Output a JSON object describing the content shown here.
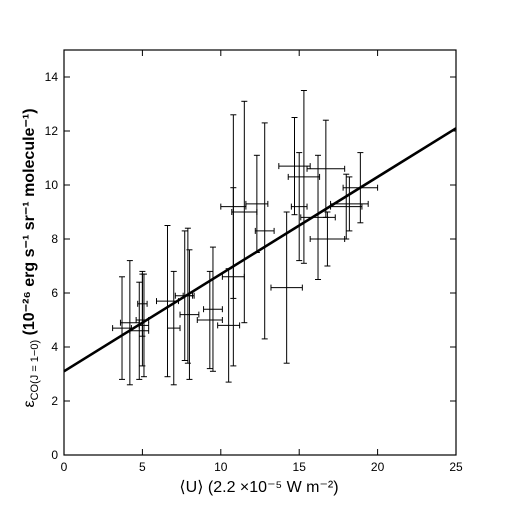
{
  "chart_data": {
    "type": "scatter",
    "xlabel": "⟨U⟩ (2.2 ×10⁻⁵ W m⁻²)",
    "ylabel_symbol": "ε",
    "ylabel_subscript": "CO(J = 1−0)",
    "ylabel_units": " (10⁻²⁶ erg s⁻¹ sr⁻¹ molecule⁻¹)",
    "xlim": [
      0,
      25
    ],
    "ylim": [
      0,
      15
    ],
    "xticks": [
      0,
      5,
      10,
      15,
      20,
      25
    ],
    "yticks": [
      0,
      2,
      4,
      6,
      8,
      10,
      12,
      14
    ],
    "grid": false,
    "fit_line": {
      "intercept": 3.1,
      "slope": 0.36
    },
    "points": [
      {
        "x": 3.7,
        "y": 4.7,
        "xerr": 0.6,
        "yerr": 1.9
      },
      {
        "x": 4.2,
        "y": 4.9,
        "xerr": 0.6,
        "yerr": 2.3
      },
      {
        "x": 4.8,
        "y": 4.6,
        "xerr": 0.6,
        "yerr": 1.8
      },
      {
        "x": 5.0,
        "y": 5.0,
        "xerr": 0.4,
        "yerr": 1.7
      },
      {
        "x": 5.0,
        "y": 5.6,
        "xerr": 0.3,
        "yerr": 1.2
      },
      {
        "x": 5.1,
        "y": 4.8,
        "xerr": 0.3,
        "yerr": 1.9
      },
      {
        "x": 6.6,
        "y": 5.7,
        "xerr": 0.7,
        "yerr": 2.8
      },
      {
        "x": 7.0,
        "y": 4.7,
        "xerr": 0.4,
        "yerr": 2.1
      },
      {
        "x": 7.7,
        "y": 5.9,
        "xerr": 0.6,
        "yerr": 2.4
      },
      {
        "x": 8.0,
        "y": 5.2,
        "xerr": 0.6,
        "yerr": 2.4
      },
      {
        "x": 7.9,
        "y": 5.9,
        "xerr": 0.3,
        "yerr": 2.5
      },
      {
        "x": 9.3,
        "y": 5.0,
        "xerr": 0.8,
        "yerr": 1.8
      },
      {
        "x": 9.5,
        "y": 5.4,
        "xerr": 0.6,
        "yerr": 2.3
      },
      {
        "x": 10.5,
        "y": 4.8,
        "xerr": 0.7,
        "yerr": 2.1
      },
      {
        "x": 10.8,
        "y": 6.6,
        "xerr": 0.7,
        "yerr": 3.3
      },
      {
        "x": 10.8,
        "y": 9.2,
        "xerr": 0.8,
        "yerr": 3.4
      },
      {
        "x": 11.5,
        "y": 9.0,
        "xerr": 0.8,
        "yerr": 4.1
      },
      {
        "x": 12.3,
        "y": 9.3,
        "xerr": 0.7,
        "yerr": 1.8
      },
      {
        "x": 12.8,
        "y": 8.3,
        "xerr": 0.6,
        "yerr": 4.0
      },
      {
        "x": 14.2,
        "y": 6.2,
        "xerr": 1.0,
        "yerr": 2.8
      },
      {
        "x": 14.7,
        "y": 10.7,
        "xerr": 1.0,
        "yerr": 1.8
      },
      {
        "x": 15.3,
        "y": 10.3,
        "xerr": 1.0,
        "yerr": 3.2
      },
      {
        "x": 15.0,
        "y": 9.2,
        "xerr": 0.5,
        "yerr": 2.0
      },
      {
        "x": 16.2,
        "y": 8.8,
        "xerr": 1.1,
        "yerr": 2.3
      },
      {
        "x": 16.7,
        "y": 10.6,
        "xerr": 1.2,
        "yerr": 1.8
      },
      {
        "x": 16.8,
        "y": 8.0,
        "xerr": 1.1,
        "yerr": 1.0
      },
      {
        "x": 18.0,
        "y": 9.2,
        "xerr": 1.0,
        "yerr": 1.2
      },
      {
        "x": 18.2,
        "y": 9.3,
        "xerr": 1.2,
        "yerr": 1.0
      },
      {
        "x": 18.9,
        "y": 9.9,
        "xerr": 1.1,
        "yerr": 1.3
      }
    ]
  }
}
